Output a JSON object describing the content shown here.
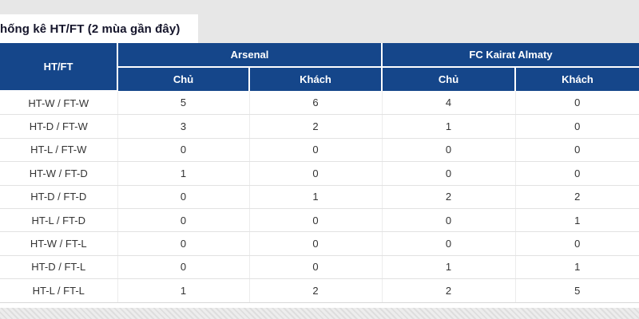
{
  "title": "hống kê HT/FT (2 mùa gần đây)",
  "table": {
    "corner_header": "HT/FT",
    "team_headers": [
      "Arsenal",
      "FC Kairat Almaty"
    ],
    "sub_headers": [
      "Chủ",
      "Khách",
      "Chủ",
      "Khách"
    ],
    "rows": [
      {
        "label": "HT-W / FT-W",
        "values": [
          5,
          6,
          4,
          0
        ]
      },
      {
        "label": "HT-D / FT-W",
        "values": [
          3,
          2,
          1,
          0
        ]
      },
      {
        "label": "HT-L / FT-W",
        "values": [
          0,
          0,
          0,
          0
        ]
      },
      {
        "label": "HT-W / FT-D",
        "values": [
          1,
          0,
          0,
          0
        ]
      },
      {
        "label": "HT-D / FT-D",
        "values": [
          0,
          1,
          2,
          2
        ]
      },
      {
        "label": "HT-L / FT-D",
        "values": [
          0,
          0,
          0,
          1
        ]
      },
      {
        "label": "HT-W / FT-L",
        "values": [
          0,
          0,
          0,
          0
        ]
      },
      {
        "label": "HT-D / FT-L",
        "values": [
          0,
          0,
          1,
          1
        ]
      },
      {
        "label": "HT-L / FT-L",
        "values": [
          1,
          2,
          2,
          5
        ]
      }
    ]
  },
  "colors": {
    "header_bg": "#15468a",
    "page_gray": "#e7e7e7",
    "title_text": "#15152b",
    "body_text": "#333333",
    "row_border": "#e2e2e2"
  }
}
